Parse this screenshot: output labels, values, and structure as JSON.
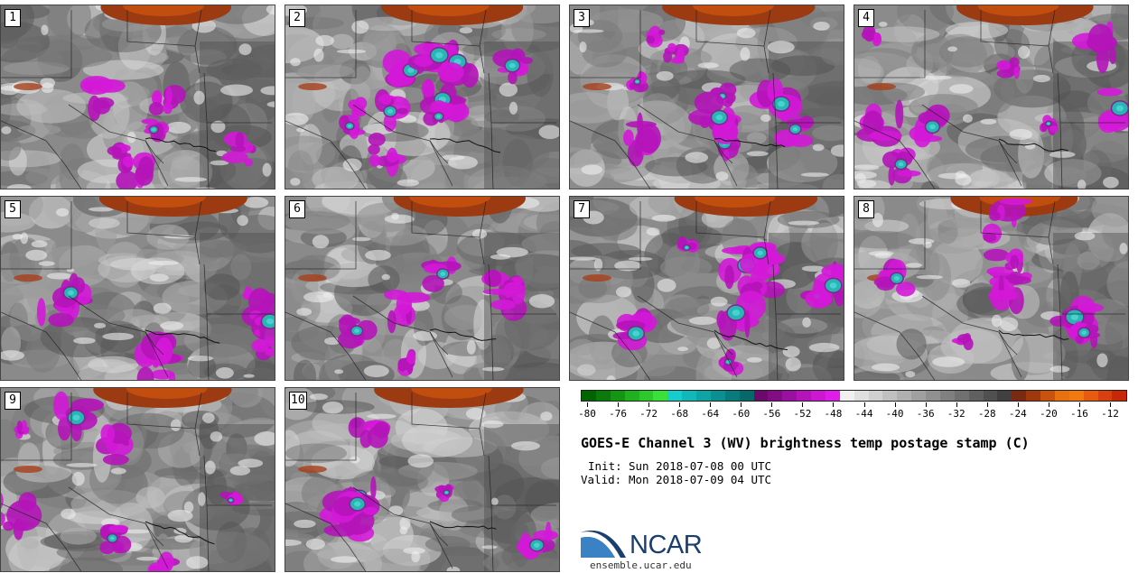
{
  "panels": [
    {
      "label": "1"
    },
    {
      "label": "2"
    },
    {
      "label": "3"
    },
    {
      "label": "4"
    },
    {
      "label": "5"
    },
    {
      "label": "6"
    },
    {
      "label": "7"
    },
    {
      "label": "8"
    },
    {
      "label": "9"
    },
    {
      "label": "10"
    }
  ],
  "legend": {
    "ticks": [
      "-80",
      "-76",
      "-72",
      "-68",
      "-64",
      "-60",
      "-56",
      "-52",
      "-48",
      "-44",
      "-40",
      "-36",
      "-32",
      "-28",
      "-24",
      "-20",
      "-16",
      "-12"
    ],
    "colors": [
      "#006400",
      "#0a7a0a",
      "#149614",
      "#20b020",
      "#2cc82c",
      "#39e039",
      "#16cccc",
      "#12b8b8",
      "#0ea4a4",
      "#0a9090",
      "#087c7c",
      "#066868",
      "#6a0a6a",
      "#820c82",
      "#9a10a0",
      "#b414b8",
      "#cc18d0",
      "#e01ce8",
      "#f0f0f0",
      "#e0e0e0",
      "#d0d0d0",
      "#c0c0c0",
      "#b0b0b0",
      "#a0a0a0",
      "#909090",
      "#808080",
      "#707070",
      "#606060",
      "#505050",
      "#404040",
      "#7a2a10",
      "#a0380e",
      "#c8520e",
      "#e8700e",
      "#f07a10",
      "#e85a10",
      "#d84010",
      "#c82808"
    ]
  },
  "title": "GOES-E Channel 3 (WV) brightness temp postage stamp (C)",
  "init_label": "Init:",
  "init_value": "Sun 2018-07-08 00 UTC",
  "valid_label": "Valid:",
  "valid_value": "Mon 2018-07-09 04 UTC",
  "logo_text": "NCAR",
  "website": "ensemble.ucar.edu"
}
